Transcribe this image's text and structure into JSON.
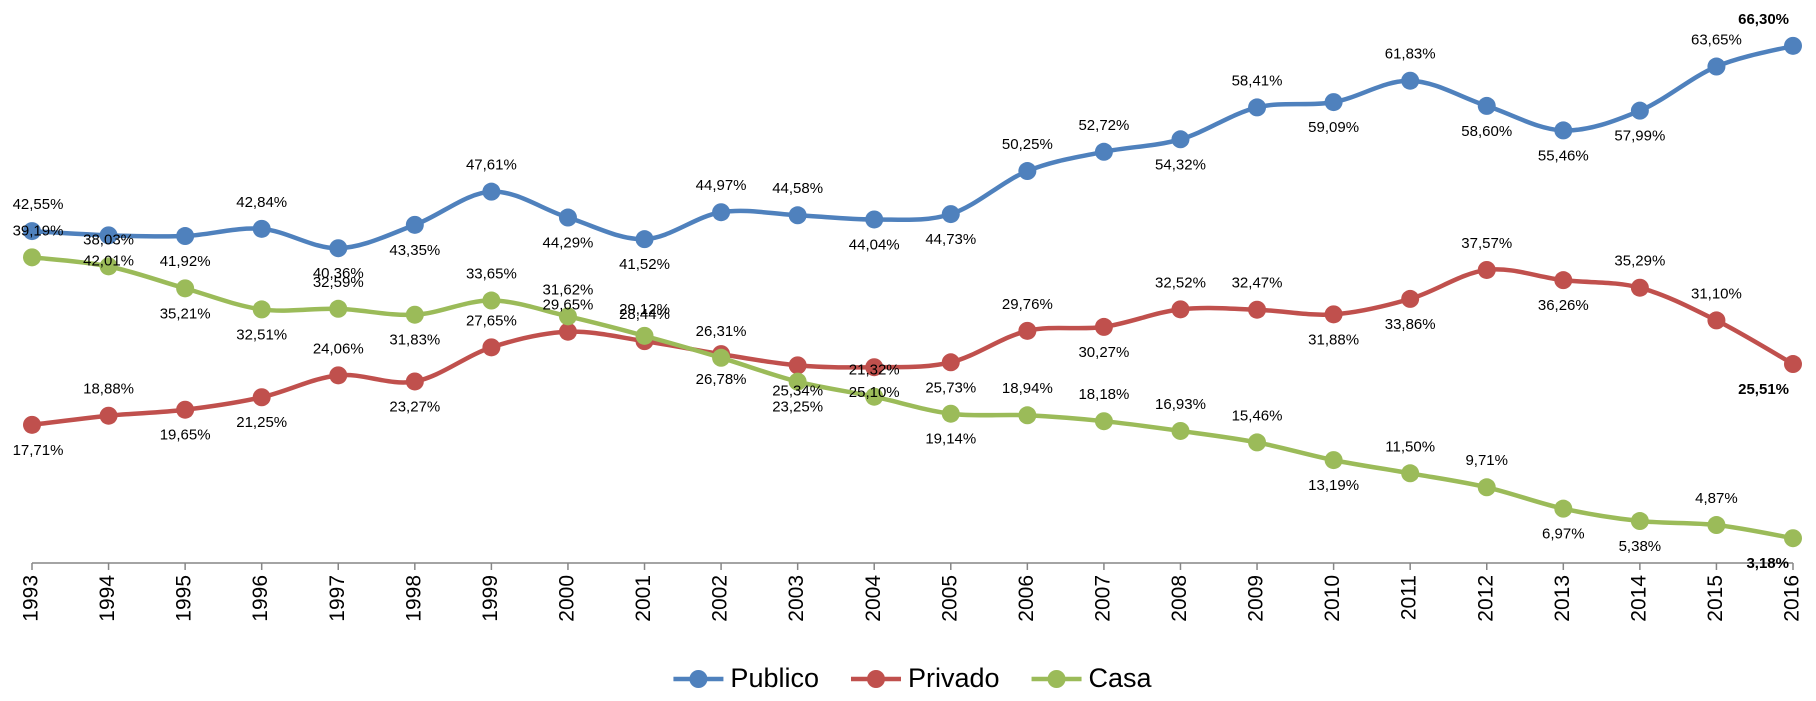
{
  "chart_data": {
    "type": "line",
    "categories": [
      "1993",
      "1994",
      "1995",
      "1996",
      "1997",
      "1998",
      "1999",
      "2000",
      "2001",
      "2002",
      "2003",
      "2004",
      "2005",
      "2006",
      "2007",
      "2008",
      "2009",
      "2010",
      "2011",
      "2012",
      "2013",
      "2014",
      "2015",
      "2016"
    ],
    "ylim": [
      0,
      70
    ],
    "legend": "bottom",
    "series": [
      {
        "name": "Publico",
        "color": "#4f81bd",
        "values": [
          42.55,
          42.01,
          41.92,
          42.84,
          40.36,
          43.35,
          47.61,
          44.29,
          41.52,
          44.97,
          44.58,
          44.04,
          44.73,
          50.25,
          52.72,
          54.32,
          58.41,
          59.09,
          61.83,
          58.6,
          55.46,
          57.99,
          63.65,
          66.3
        ],
        "value_labels": [
          "42,55%",
          "42,01%",
          "41,92%",
          "42,84%",
          "40,36%",
          "43,35%",
          "47,61%",
          "44,29%",
          "41,52%",
          "44,97%",
          "44,58%",
          "44,04%",
          "44,73%",
          "50,25%",
          "52,72%",
          "54,32%",
          "58,41%",
          "59,09%",
          "61,83%",
          "58,60%",
          "55,46%",
          "57,99%",
          "63,65%",
          "66,30%"
        ]
      },
      {
        "name": "Privado",
        "color": "#c0504d",
        "values": [
          17.71,
          18.88,
          19.65,
          21.25,
          24.06,
          23.27,
          27.65,
          29.65,
          28.44,
          26.78,
          25.34,
          25.1,
          25.73,
          29.76,
          30.27,
          32.52,
          32.47,
          31.88,
          33.86,
          37.57,
          36.26,
          35.29,
          31.1,
          25.51
        ],
        "value_labels": [
          "17,71%",
          "18,88%",
          "19,65%",
          "21,25%",
          "24,06%",
          "23,27%",
          "27,65%",
          "29,65%",
          "28,44%",
          "26,78%",
          "25,34%",
          "25,10%",
          "25,73%",
          "29,76%",
          "30,27%",
          "32,52%",
          "32,47%",
          "31,88%",
          "33,86%",
          "37,57%",
          "36,26%",
          "35,29%",
          "31,10%",
          "25,51%"
        ]
      },
      {
        "name": "Casa",
        "color": "#9bbb59",
        "values": [
          39.19,
          38.03,
          35.21,
          32.51,
          32.59,
          31.83,
          33.65,
          31.62,
          29.12,
          26.31,
          23.25,
          21.32,
          19.14,
          18.94,
          18.18,
          16.93,
          15.46,
          13.19,
          11.5,
          9.71,
          6.97,
          5.38,
          4.87,
          3.18
        ],
        "value_labels": [
          "39,19%",
          "38,03%",
          "35,21%",
          "32,51%",
          "32,59%",
          "31,83%",
          "33,65%",
          "31,62%",
          "29,12%",
          "26,31%",
          "23,25%",
          "21,32%",
          "19,14%",
          "18,94%",
          "18,18%",
          "16,93%",
          "15,46%",
          "13,19%",
          "11,50%",
          "9,71%",
          "6,97%",
          "5,38%",
          "4,87%",
          "3,18%"
        ]
      }
    ]
  }
}
